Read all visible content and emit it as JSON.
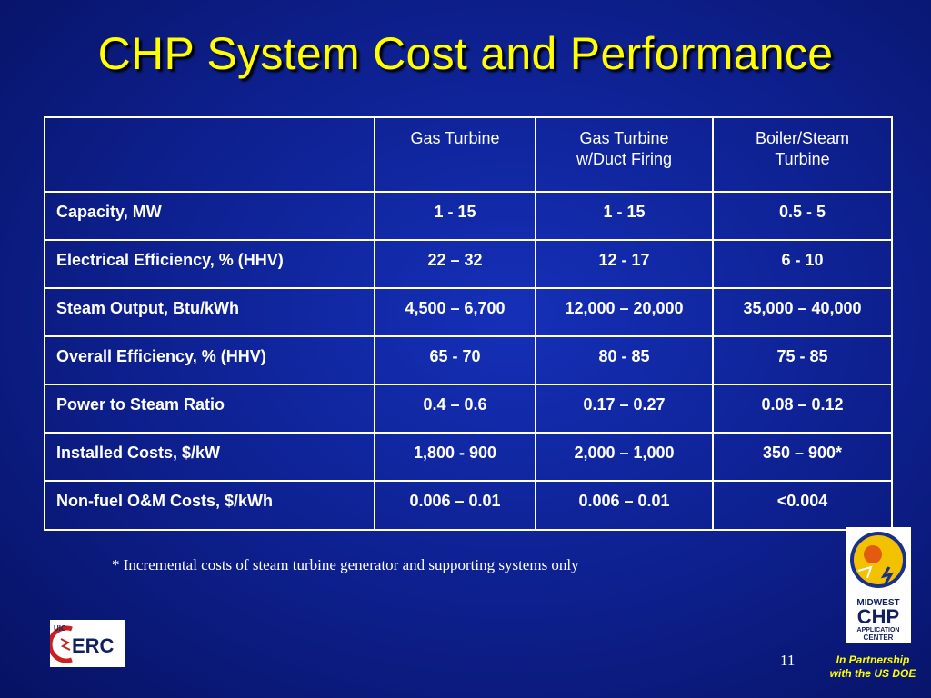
{
  "slide": {
    "title": "CHP System Cost and Performance",
    "footnote": "* Incremental costs of steam turbine generator and supporting systems only",
    "page_number": "11",
    "partner_line1": "In Partnership",
    "partner_line2": "with the US DOE"
  },
  "table": {
    "headers": [
      "",
      "Gas Turbine",
      "Gas Turbine w/Duct Firing",
      "Boiler/Steam Turbine"
    ],
    "rows": [
      [
        "Capacity, MW",
        "1 - 15",
        "1 - 15",
        "0.5 - 5"
      ],
      [
        "Electrical Efficiency, % (HHV)",
        "22 – 32",
        "12 - 17",
        "6 - 10"
      ],
      [
        "Steam Output, Btu/kWh",
        "4,500 – 6,700",
        "12,000 – 20,000",
        "35,000 – 40,000"
      ],
      [
        "Overall Efficiency, % (HHV)",
        "65 - 70",
        "80 - 85",
        "75 - 85"
      ],
      [
        "Power to Steam Ratio",
        "0.4 – 0.6",
        "0.17 – 0.27",
        "0.08 – 0.12"
      ],
      [
        "Installed Costs, $/kW",
        "1,800 - 900",
        "2,000 – 1,000",
        "350 – 900*"
      ],
      [
        "Non-fuel O&M Costs, $/kWh",
        "0.006 – 0.01",
        "0.006 – 0.01",
        "<0.004"
      ]
    ]
  },
  "logos": {
    "uic_erc": {
      "text_small": "UIC",
      "text_main": "ERC"
    },
    "midwest_chp": {
      "line1": "MIDWEST",
      "line2": "CHP",
      "line3": "APPLICATION",
      "line4": "CENTER"
    }
  },
  "colors": {
    "title": "#ffff00",
    "background": "#0d1f8c",
    "text": "#ffffff",
    "logo_red": "#cc1f1f",
    "logo_navy": "#13205e",
    "logo_yellow": "#f2c200"
  }
}
